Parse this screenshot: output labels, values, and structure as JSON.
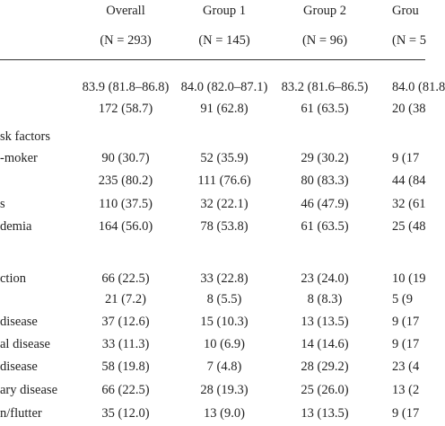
{
  "table": {
    "header": [
      "Overall",
      "Group 1",
      "Group 2",
      "Grou"
    ],
    "subheader": [
      "(N = 293)",
      "(N = 145)",
      "(N = 96)",
      "(N = 5"
    ],
    "rows": [
      [
        null,
        "83.9 (81.8–86.8)",
        "84.0 (82.0–87.1)",
        "83.2 (81.6–86.5)",
        "84.0 (81.8"
      ],
      [
        null,
        "172 (58.7)",
        "91 (62.8)",
        "61 (63.5)",
        "20 (38"
      ],
      [
        "sk factors",
        null,
        null,
        null,
        null
      ],
      [
        "-moker",
        "90 (30.7)",
        "52 (35.9)",
        "29 (30.2)",
        "9 (17"
      ],
      [
        null,
        "235 (80.2)",
        "111 (76.6)",
        "80 (83.3)",
        "44 (84"
      ],
      [
        "s",
        "110 (37.5)",
        "32 (22.1)",
        "46 (47.9)",
        "32 (61"
      ],
      [
        "demia",
        "164 (56.0)",
        "78 (53.8)",
        "61 (63.5)",
        "25 (48"
      ],
      [
        "ction",
        "66 (22.5)",
        "33 (22.8)",
        "23 (24.0)",
        "10 (19"
      ],
      [
        null,
        "21 (7.2)",
        "8 (5.5)",
        "8 (8.3)",
        "5 (9"
      ],
      [
        "disease",
        "37 (12.6)",
        "15 (10.3)",
        "13 (13.5)",
        "9 (17"
      ],
      [
        "al disease",
        "33 (11.3)",
        "10 (6.9)",
        "14 (14.6)",
        "9 (17"
      ],
      [
        "disease",
        "58 (19.8)",
        "7 (4.8)",
        "28 (29.2)",
        "23 (4"
      ],
      [
        "ary disease",
        "66 (22.5)",
        "28 (19.3)",
        "25 (26.0)",
        "13 (2"
      ],
      [
        "n/flutter",
        "35 (12.0)",
        "13 (9.0)",
        "13 (13.5)",
        "9 (17"
      ]
    ]
  }
}
